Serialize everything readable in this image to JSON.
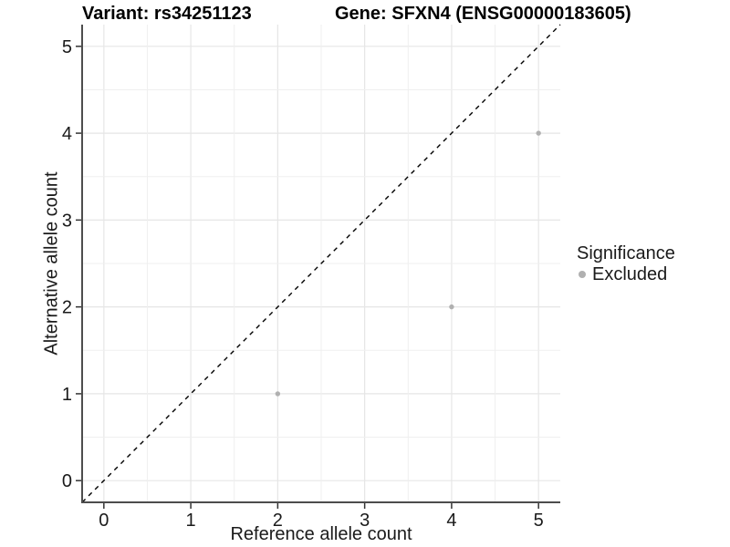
{
  "header": {
    "variant_title": "Variant: rs34251123",
    "gene_title": "Gene: SFXN4 (ENSG00000183605)"
  },
  "legend": {
    "title": "Significance",
    "items": [
      {
        "label": "Excluded",
        "color": "#b0b0b0"
      }
    ]
  },
  "chart_data": {
    "type": "scatter",
    "title": "Variant: rs34251123  |  Gene: SFXN4 (ENSG00000183605)",
    "xlabel": "Reference allele count",
    "ylabel": "Alternative allele count",
    "xlim": [
      -0.25,
      5.25
    ],
    "ylim": [
      -0.25,
      5.25
    ],
    "x_ticks": [
      0,
      1,
      2,
      3,
      4,
      5
    ],
    "y_ticks": [
      0,
      1,
      2,
      3,
      4,
      5
    ],
    "minor_grid_step": 0.5,
    "grid": true,
    "legend_position": "right",
    "series": [
      {
        "name": "Excluded",
        "color": "#b0b0b0",
        "points": [
          {
            "x": 2,
            "y": 1
          },
          {
            "x": 4,
            "y": 2
          },
          {
            "x": 5,
            "y": 4
          }
        ]
      }
    ],
    "reference_line": {
      "kind": "identity",
      "style": "dashed",
      "color": "#000000"
    }
  },
  "colors": {
    "background": "#ffffff",
    "grid_major": "#e6e6e6",
    "grid_minor": "#efefef",
    "axis_line": "#4d4d4d",
    "tick_mark": "#333333",
    "tick_label": "#1a1a1a",
    "point": "#b0b0b0"
  }
}
